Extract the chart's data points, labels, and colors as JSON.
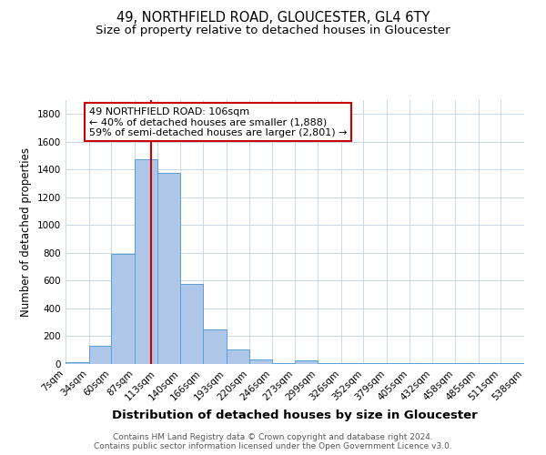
{
  "title": "49, NORTHFIELD ROAD, GLOUCESTER, GL4 6TY",
  "subtitle": "Size of property relative to detached houses in Gloucester",
  "xlabel": "Distribution of detached houses by size in Gloucester",
  "ylabel": "Number of detached properties",
  "bin_edges": [
    7,
    34,
    60,
    87,
    113,
    140,
    166,
    193,
    220,
    246,
    273,
    299,
    326,
    352,
    379,
    405,
    432,
    458,
    485,
    511,
    538
  ],
  "bin_labels": [
    "7sqm",
    "34sqm",
    "60sqm",
    "87sqm",
    "113sqm",
    "140sqm",
    "166sqm",
    "193sqm",
    "220sqm",
    "246sqm",
    "273sqm",
    "299sqm",
    "326sqm",
    "352sqm",
    "379sqm",
    "405sqm",
    "432sqm",
    "458sqm",
    "485sqm",
    "511sqm",
    "538sqm"
  ],
  "bar_heights": [
    10,
    130,
    795,
    1475,
    1375,
    575,
    250,
    105,
    30,
    5,
    25,
    5,
    5,
    5,
    5,
    5,
    5,
    5,
    5,
    5
  ],
  "bar_color": "#aec6e8",
  "bar_edge_color": "#5a9fd4",
  "property_value": 106,
  "vline_color": "#cc0000",
  "ylim": [
    0,
    1900
  ],
  "yticks": [
    0,
    200,
    400,
    600,
    800,
    1000,
    1200,
    1400,
    1600,
    1800
  ],
  "annotation_line1": "49 NORTHFIELD ROAD: 106sqm",
  "annotation_line2": "← 40% of detached houses are smaller (1,888)",
  "annotation_line3": "59% of semi-detached houses are larger (2,801) →",
  "annotation_box_color": "#ffffff",
  "annotation_box_edge": "#cc0000",
  "footer_line1": "Contains HM Land Registry data © Crown copyright and database right 2024.",
  "footer_line2": "Contains public sector information licensed under the Open Government Licence v3.0.",
  "bg_color": "#ffffff",
  "grid_color": "#c8d8e8",
  "title_fontsize": 10.5,
  "subtitle_fontsize": 9.5,
  "axis_label_fontsize": 8.5,
  "tick_fontsize": 7.5,
  "annotation_fontsize": 8,
  "footer_fontsize": 6.5
}
